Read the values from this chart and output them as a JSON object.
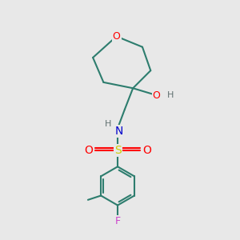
{
  "background_color": "#e8e8e8",
  "bond_color": "#2d7d6e",
  "o_color": "#ff0000",
  "n_color": "#0000cc",
  "s_color": "#cccc00",
  "f_color": "#cc44cc",
  "h_color": "#607070",
  "bond_width": 1.5,
  "figsize": [
    3.0,
    3.0
  ],
  "dpi": 100,
  "xlim": [
    0,
    10
  ],
  "ylim": [
    0,
    10
  ]
}
